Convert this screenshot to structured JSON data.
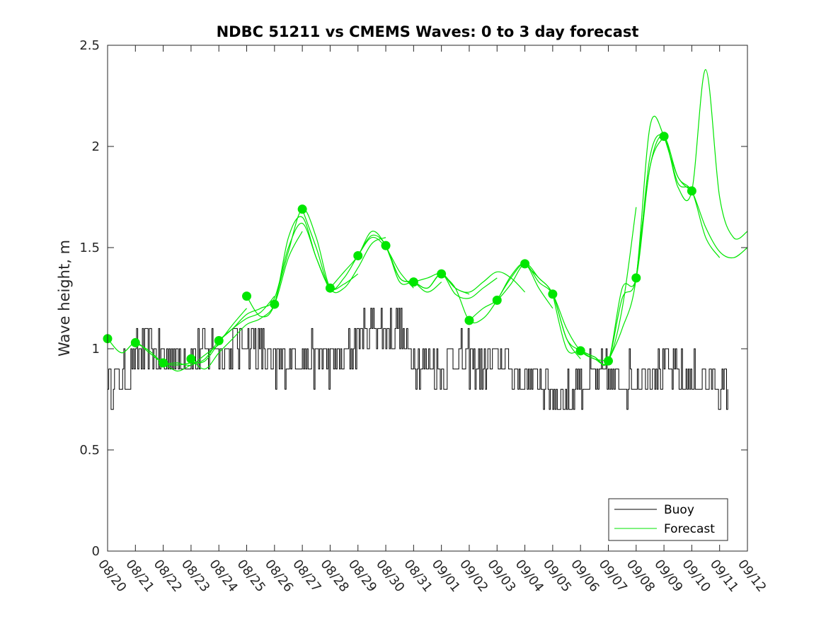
{
  "chart_data": {
    "type": "line",
    "title": "NDBC 51211 vs CMEMS Waves: 0 to 3 day forecast",
    "xlabel": "",
    "ylabel": "Wave height, m",
    "x_unit": "days since 08/20",
    "xlim": [
      0,
      23
    ],
    "ylim": [
      0,
      2.5
    ],
    "yticks": [
      0,
      0.5,
      1,
      1.5,
      2,
      2.5
    ],
    "ytick_labels": [
      "0",
      "0.5",
      "1",
      "1.5",
      "2",
      "2.5"
    ],
    "xtick_labels": [
      "08/20",
      "08/21",
      "08/22",
      "08/23",
      "08/24",
      "08/25",
      "08/26",
      "08/27",
      "08/28",
      "08/29",
      "08/30",
      "08/31",
      "09/01",
      "09/02",
      "09/03",
      "09/04",
      "09/05",
      "09/06",
      "09/07",
      "09/08",
      "09/09",
      "09/10",
      "09/11",
      "09/12"
    ],
    "legend": {
      "position": "bottom-right",
      "entries": [
        "Buoy",
        "Forecast"
      ]
    },
    "colors": {
      "buoy": "#000000",
      "forecast": "#00e600",
      "axes": "#262626"
    },
    "buoy_anchors": {
      "x": [
        0,
        0.5,
        1,
        1.5,
        2,
        2.5,
        3,
        3.5,
        4,
        4.5,
        5,
        5.5,
        6,
        6.5,
        7,
        7.5,
        8,
        8.5,
        9,
        9.5,
        10,
        10.5,
        11,
        11.5,
        12,
        12.5,
        13,
        13.5,
        14,
        14.5,
        15,
        15.5,
        16,
        16.5,
        17,
        17.5,
        18,
        18.5,
        19,
        19.5,
        20,
        20.5,
        21,
        21.5,
        22,
        22.3
      ],
      "values": [
        0.85,
        0.85,
        0.95,
        1.0,
        0.95,
        0.95,
        0.95,
        1.0,
        1.0,
        1.0,
        1.05,
        1.0,
        0.9,
        0.95,
        0.95,
        0.95,
        0.95,
        0.95,
        1.05,
        1.1,
        1.1,
        1.1,
        0.95,
        0.95,
        0.9,
        0.95,
        0.95,
        0.9,
        0.95,
        0.9,
        0.85,
        0.85,
        0.8,
        0.75,
        0.85,
        0.85,
        0.85,
        0.85,
        0.85,
        0.9,
        0.9,
        0.85,
        0.85,
        0.85,
        0.8,
        0.8
      ],
      "min": 0.7,
      "max": 1.2
    },
    "series": [
      {
        "name": "Forecast run 1",
        "x": [
          0,
          0.5,
          1,
          1.5,
          2,
          2.5,
          3,
          3.5,
          4
        ],
        "values": [
          1.05,
          0.98,
          1.03,
          0.98,
          0.93,
          0.93,
          0.92,
          0.97,
          1.02
        ]
      },
      {
        "name": "Forecast run 2",
        "x": [
          1,
          1.5,
          2,
          2.5,
          3,
          3.5,
          4,
          4.5,
          5
        ],
        "values": [
          1.03,
          0.99,
          0.93,
          0.92,
          0.93,
          0.94,
          1.03,
          1.12,
          1.2
        ]
      },
      {
        "name": "Forecast run 3",
        "x": [
          2,
          2.5,
          3,
          3.5,
          4,
          4.5,
          5,
          5.5,
          6
        ],
        "values": [
          0.93,
          0.89,
          0.92,
          0.95,
          1.04,
          1.1,
          1.15,
          1.18,
          1.26
        ]
      },
      {
        "name": "Forecast run 4",
        "x": [
          3,
          3.5,
          4,
          4.5,
          5,
          5.5,
          6,
          6.5,
          7
        ],
        "values": [
          0.95,
          0.9,
          0.98,
          1.05,
          1.12,
          1.15,
          1.22,
          1.45,
          1.58
        ]
      },
      {
        "name": "Forecast run 5",
        "x": [
          4,
          4.5,
          5,
          5.5,
          6,
          6.5,
          7,
          7.5,
          8
        ],
        "values": [
          1.04,
          1.1,
          1.17,
          1.2,
          1.25,
          1.5,
          1.62,
          1.45,
          1.28
        ]
      },
      {
        "name": "Forecast run 6",
        "x": [
          5,
          5.5,
          6,
          6.5,
          7,
          7.5,
          8,
          8.5,
          9
        ],
        "values": [
          1.26,
          1.16,
          1.22,
          1.55,
          1.65,
          1.45,
          1.3,
          1.32,
          1.37
        ]
      },
      {
        "name": "Forecast run 7",
        "x": [
          6,
          6.5,
          7,
          7.5,
          8,
          8.5,
          9,
          9.5,
          10
        ],
        "values": [
          1.22,
          1.48,
          1.69,
          1.55,
          1.3,
          1.3,
          1.4,
          1.52,
          1.55
        ]
      },
      {
        "name": "Forecast run 8",
        "x": [
          7,
          7.5,
          8,
          8.5,
          9,
          9.5,
          10,
          10.5,
          11
        ],
        "values": [
          1.69,
          1.5,
          1.3,
          1.35,
          1.46,
          1.55,
          1.5,
          1.38,
          1.3
        ]
      },
      {
        "name": "Forecast run 9",
        "x": [
          8,
          8.5,
          9,
          9.5,
          10,
          10.5,
          11,
          11.5,
          12
        ],
        "values": [
          1.3,
          1.38,
          1.46,
          1.58,
          1.51,
          1.35,
          1.33,
          1.28,
          1.33
        ]
      },
      {
        "name": "Forecast run 10",
        "x": [
          9,
          9.5,
          10,
          10.5,
          11,
          11.5,
          12,
          12.5,
          13
        ],
        "values": [
          1.46,
          1.56,
          1.51,
          1.33,
          1.33,
          1.3,
          1.37,
          1.3,
          1.27
        ]
      },
      {
        "name": "Forecast run 11",
        "x": [
          10,
          10.5,
          11,
          11.5,
          12,
          12.5,
          13,
          13.5,
          14
        ],
        "values": [
          1.51,
          1.35,
          1.33,
          1.3,
          1.37,
          1.27,
          1.25,
          1.3,
          1.35
        ]
      },
      {
        "name": "Forecast run 12",
        "x": [
          11,
          11.5,
          12,
          12.5,
          13,
          13.5,
          14,
          14.5,
          15
        ],
        "values": [
          1.33,
          1.35,
          1.37,
          1.3,
          1.28,
          1.33,
          1.38,
          1.35,
          1.28
        ]
      },
      {
        "name": "Forecast run 13",
        "x": [
          12,
          12.5,
          13,
          13.5,
          14,
          14.5,
          15,
          15.5,
          16
        ],
        "values": [
          1.37,
          1.3,
          1.14,
          1.15,
          1.24,
          1.36,
          1.42,
          1.3,
          1.2
        ]
      },
      {
        "name": "Forecast run 14",
        "x": [
          13,
          13.5,
          14,
          14.5,
          15,
          15.5,
          16,
          16.5,
          17
        ],
        "values": [
          1.14,
          1.2,
          1.24,
          1.32,
          1.42,
          1.35,
          1.27,
          1.05,
          0.95
        ]
      },
      {
        "name": "Forecast run 15",
        "x": [
          14,
          14.5,
          15,
          15.5,
          16,
          16.5,
          17,
          17.5,
          18
        ],
        "values": [
          1.24,
          1.35,
          1.42,
          1.33,
          1.27,
          1.1,
          0.99,
          0.95,
          0.94
        ]
      },
      {
        "name": "Forecast run 16",
        "x": [
          15,
          15.5,
          16,
          16.5,
          17,
          17.5,
          18,
          18.5,
          19
        ],
        "values": [
          1.42,
          1.35,
          1.27,
          1.05,
          0.99,
          0.95,
          0.94,
          1.2,
          1.7
        ]
      },
      {
        "name": "Forecast run 17",
        "x": [
          16,
          16.5,
          17,
          17.5,
          18,
          18.5,
          19,
          19.5,
          20
        ],
        "values": [
          1.27,
          1.0,
          0.99,
          0.96,
          0.94,
          1.3,
          1.35,
          1.9,
          2.05
        ]
      },
      {
        "name": "Forecast run 18",
        "x": [
          17,
          17.5,
          18,
          18.5,
          19,
          19.5,
          20,
          20.5,
          21
        ],
        "values": [
          0.99,
          0.96,
          0.94,
          1.25,
          1.35,
          1.95,
          2.05,
          1.85,
          1.78
        ]
      },
      {
        "name": "Forecast run 19",
        "x": [
          18,
          18.5,
          19,
          19.5,
          20,
          20.5,
          21,
          21.5,
          22
        ],
        "values": [
          0.94,
          1.1,
          1.35,
          2.1,
          2.05,
          1.82,
          1.78,
          1.55,
          1.45
        ]
      },
      {
        "name": "Forecast run 20",
        "x": [
          19,
          19.5,
          20,
          20.5,
          21,
          21.5,
          22,
          22.5,
          23
        ],
        "values": [
          1.35,
          1.9,
          2.05,
          1.8,
          1.78,
          2.38,
          1.75,
          1.55,
          1.58
        ]
      },
      {
        "name": "Forecast run 21",
        "x": [
          20,
          20.5,
          21,
          21.5,
          22,
          22.5,
          23
        ],
        "values": [
          2.05,
          1.85,
          1.78,
          1.6,
          1.48,
          1.45,
          1.5
        ]
      }
    ],
    "forecast_points": {
      "x": [
        0,
        1,
        2,
        3,
        4,
        5,
        6,
        7,
        8,
        9,
        10,
        11,
        12,
        13,
        14,
        15,
        16,
        17,
        18,
        19,
        20,
        21
      ],
      "values": [
        1.05,
        1.03,
        0.93,
        0.95,
        1.04,
        1.26,
        1.22,
        1.69,
        1.3,
        1.46,
        1.51,
        1.33,
        1.37,
        1.14,
        1.24,
        1.42,
        1.27,
        0.99,
        0.94,
        1.35,
        2.05,
        1.78
      ]
    }
  }
}
